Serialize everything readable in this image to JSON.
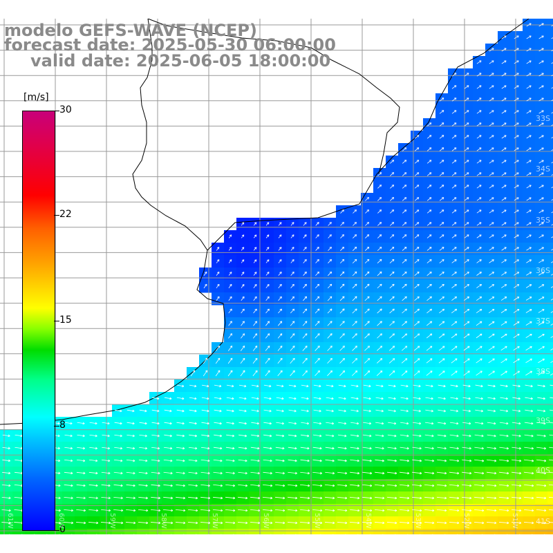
{
  "header": {
    "line1": "modelo GEFS-WAVE (NCEP)",
    "line2": "forecast date: 2025-05-30 06:00:00",
    "line3": "valid date: 2025-06-05 18:00:00"
  },
  "colorbar": {
    "unit": "[m/s]",
    "ticks": [
      {
        "label": "30",
        "value": 30
      },
      {
        "label": "22",
        "value": 22
      },
      {
        "label": "15",
        "value": 15
      },
      {
        "label": "8",
        "value": 8
      },
      {
        "label": "0",
        "value": 0
      }
    ],
    "colors": [
      "#0000ff",
      "#0064ff",
      "#00c8ff",
      "#00ffff",
      "#00ff88",
      "#00dd00",
      "#88ff00",
      "#ffff00",
      "#ffa000",
      "#ff6000",
      "#ff0000",
      "#e0004c",
      "#c8007a"
    ]
  },
  "map": {
    "lat_labels": [
      "33S",
      "34S",
      "35S",
      "36S",
      "37S",
      "38S",
      "39S",
      "40S",
      "41S"
    ],
    "lon_labels": [
      "61W",
      "60W",
      "59W",
      "58W",
      "57W",
      "56W",
      "55W",
      "54W",
      "53W",
      "52W",
      "51W"
    ],
    "land_color": "#ffffff",
    "grid_color": "#999999",
    "coast_color": "#000000",
    "arrow_color": "#ffffff"
  }
}
